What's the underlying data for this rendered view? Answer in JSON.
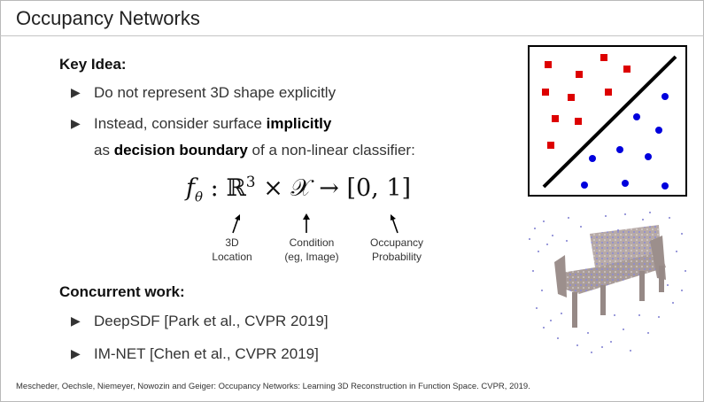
{
  "slide": {
    "title": "Occupancy Networks",
    "key_idea_heading": "Key Idea:",
    "bullets": [
      {
        "text": "Do not represent 3D shape explicitly"
      },
      {
        "pre": "Instead, consider surface ",
        "bold": "implicitly",
        "post": ""
      },
      {
        "pre": "as ",
        "bold": "decision boundary",
        "post": " of a non-linear classifier:"
      }
    ],
    "formula": {
      "f": "f",
      "theta": "θ",
      "colon": ":",
      "R": "ℝ",
      "exp": "3",
      "times": "×",
      "X": "𝒳",
      "to": "→",
      "range": "[0, 1]"
    },
    "annotations": [
      {
        "line1": "3D",
        "line2": "Location"
      },
      {
        "line1": "Condition",
        "line2": "(eg, Image)"
      },
      {
        "line1": "Occupancy",
        "line2": "Probability"
      }
    ],
    "concurrent_heading": "Concurrent work:",
    "concurrent": [
      "DeepSDF [Park et al., CVPR 2019]",
      "IM-NET [Chen et al., CVPR 2019]"
    ],
    "footer": "Mescheder, Oechsle, Niemeyer, Nowozin and Geiger: Occupancy Networks: Learning 3D Reconstruction in Function Space. CVPR, 2019."
  },
  "colors": {
    "red": "#dd0000",
    "blue": "#0000dd",
    "title": "#222222"
  },
  "icons": {
    "bullet": "triangle-right-icon",
    "arrow": "arrow-up-icon"
  }
}
